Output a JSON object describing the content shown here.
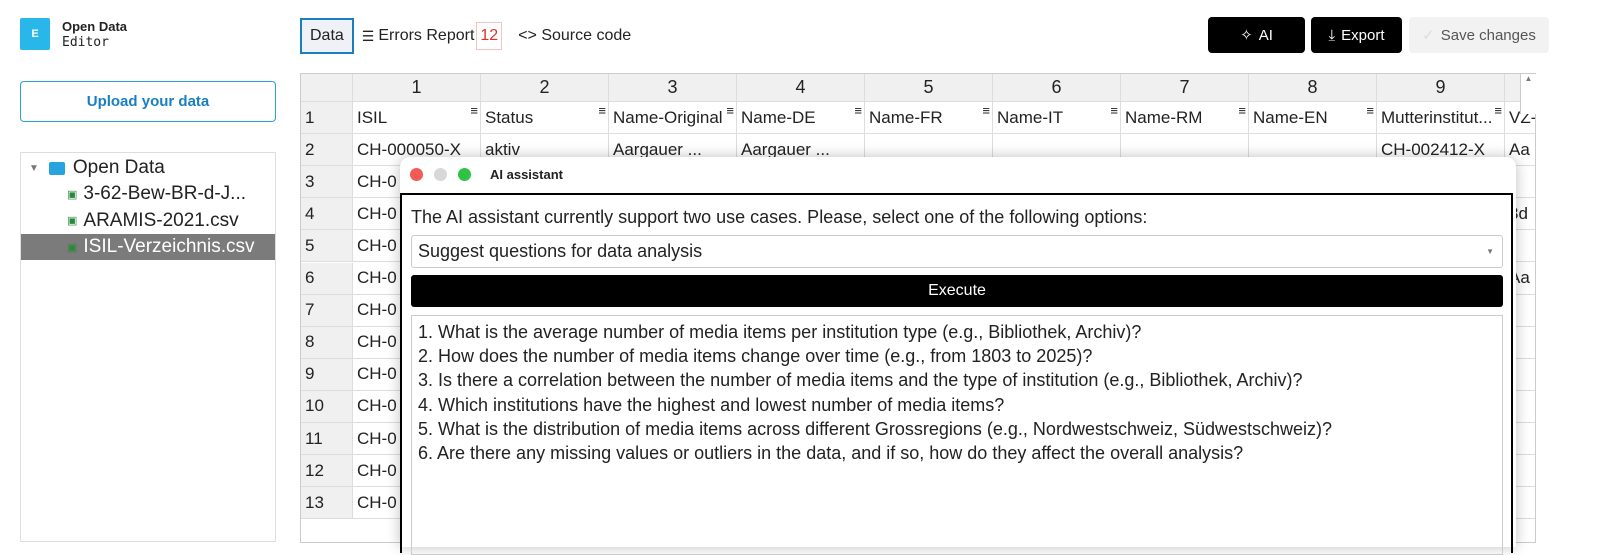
{
  "app": {
    "name_line1": "Open Data",
    "name_line2": "Editor",
    "logo_letter": "E"
  },
  "sidebar": {
    "upload_label": "Upload your data",
    "tree": {
      "folder": "Open Data",
      "files": [
        {
          "name": "3-62-Bew-BR-d-J...",
          "selected": false
        },
        {
          "name": "ARAMIS-2021.csv",
          "selected": false
        },
        {
          "name": "ISIL-Verzeichnis.csv",
          "selected": true
        }
      ]
    }
  },
  "toolbar": {
    "tabs": {
      "data": "Data",
      "errors": "Errors Report",
      "errors_count": "12",
      "source": "Source code"
    },
    "ai_label": "AI",
    "export_label": "Export",
    "save_label": "Save changes"
  },
  "table": {
    "column_numbers": [
      "1",
      "2",
      "3",
      "4",
      "5",
      "6",
      "7",
      "8",
      "9",
      ""
    ],
    "row_numbers": [
      "1",
      "2",
      "3",
      "4",
      "5",
      "6",
      "7",
      "8",
      "9",
      "10",
      "11",
      "12",
      "13"
    ],
    "rows": [
      [
        "ISIL",
        "Status",
        "Name-Original",
        "Name-DE",
        "Name-FR",
        "Name-IT",
        "Name-RM",
        "Name-EN",
        "Mutterinstitut...",
        "VZ-"
      ],
      [
        "CH-000050-X",
        "aktiv",
        "Aargauer ...",
        "Aargauer ...",
        "",
        "",
        "",
        "",
        "CH-002412-X",
        "Aa"
      ],
      [
        "CH-0",
        "",
        "",
        "",
        "",
        "",
        "",
        "",
        "",
        ""
      ],
      [
        "CH-0",
        "",
        "",
        "",
        "",
        "",
        "",
        "",
        "",
        "3d"
      ],
      [
        "CH-0",
        "",
        "",
        "",
        "",
        "",
        "",
        "",
        "",
        ""
      ],
      [
        "CH-0",
        "",
        "",
        "",
        "",
        "",
        "",
        "",
        "",
        "Aa"
      ],
      [
        "CH-0",
        "",
        "",
        "",
        "",
        "",
        "",
        "",
        "",
        ""
      ],
      [
        "CH-0",
        "",
        "",
        "",
        "",
        "",
        "",
        "",
        "",
        ""
      ],
      [
        "CH-0",
        "",
        "",
        "",
        "",
        "",
        "",
        "",
        "",
        ""
      ],
      [
        "CH-0",
        "",
        "",
        "",
        "",
        "",
        "",
        "",
        "",
        ""
      ],
      [
        "CH-0",
        "",
        "",
        "",
        "",
        "",
        "",
        "",
        "",
        ""
      ],
      [
        "CH-0",
        "",
        "",
        "",
        "",
        "",
        "",
        "",
        "",
        ""
      ],
      [
        "CH-0",
        "",
        "",
        "",
        "",
        "",
        "",
        "",
        "",
        ""
      ]
    ]
  },
  "dialog": {
    "title": "AI assistant",
    "intro": "The AI assistant currently support two use cases. Please, select one of the following options:",
    "selected_option": "Suggest questions for data analysis",
    "execute_label": "Execute",
    "output": [
      "1. What is the average number of media items per institution type (e.g., Bibliothek, Archiv)?",
      "2. How does the number of media items change over time (e.g., from 1803 to 2025)?",
      "3. Is there a correlation between the number of media items and the type of institution (e.g., Bibliothek, Archiv)?",
      "4. Which institutions have the highest and lowest number of media items?",
      "5. What is the distribution of media items across different Grossregions (e.g., Nordwestschweiz, Südwestschweiz)?",
      "6. Are there any missing values or outliers in the data, and if so, how do they affect the overall analysis?"
    ]
  },
  "colors": {
    "accent": "#1a7fc1",
    "logo": "#29b6e8",
    "error": "#dd3322",
    "selected_file": "#7b7b7b"
  }
}
